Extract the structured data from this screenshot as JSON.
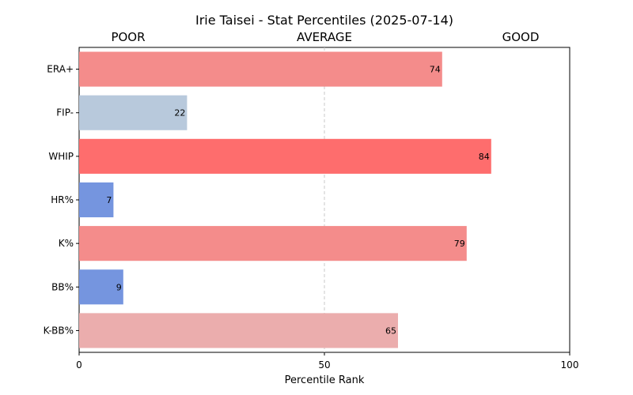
{
  "chart_data": {
    "type": "bar",
    "orientation": "horizontal",
    "title": "Irie Taisei - Stat Percentiles (2025-07-14)",
    "xlabel": "Percentile Rank",
    "ylabel": "",
    "xlim": [
      0,
      100
    ],
    "xticks": [
      "0",
      "50",
      "100"
    ],
    "zone_labels": [
      "POOR",
      "AVERAGE",
      "GOOD"
    ],
    "reference_line": {
      "x": 50,
      "style": "dashed",
      "color": "#c8c8c8"
    },
    "grid": false,
    "categories": [
      "ERA+",
      "FIP-",
      "WHIP",
      "HR%",
      "K%",
      "BB%",
      "K-BB%"
    ],
    "values": [
      74,
      22,
      84,
      7,
      79,
      9,
      65
    ],
    "value_labels": [
      "74",
      "22",
      "84",
      "7",
      "79",
      "9",
      "65"
    ],
    "colors": [
      "#f48c8b",
      "#b8c9dc",
      "#fe6d6d",
      "#7595df",
      "#f48c8b",
      "#7595df",
      "#ebadad"
    ]
  }
}
